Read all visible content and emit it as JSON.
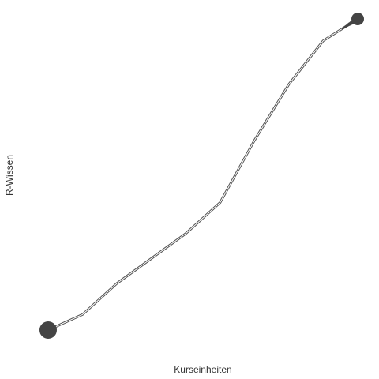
{
  "chart_data": {
    "type": "line",
    "title": "",
    "xlabel": "Kurseinheiten",
    "ylabel": "R-Wissen",
    "grid": false,
    "legend": "none",
    "xlim": [
      1,
      10
    ],
    "ylim": [
      0,
      100
    ],
    "x": [
      1,
      2,
      3,
      4,
      5,
      6,
      7,
      8,
      9,
      10
    ],
    "values": [
      0,
      5,
      15,
      23,
      31,
      41,
      61,
      79,
      93,
      100
    ],
    "start_point": {
      "x": 1,
      "y": 0
    },
    "end_point": {
      "x": 10,
      "y": 100
    },
    "colors": {
      "line": "#555555",
      "line_highlight": "#ffffff",
      "marker": "#444444"
    }
  }
}
